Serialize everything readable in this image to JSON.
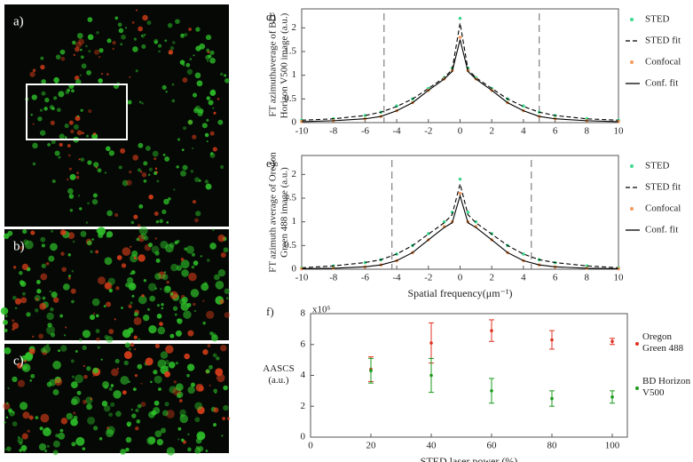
{
  "panels": [
    {
      "label": "a)"
    },
    {
      "label": "b)"
    },
    {
      "label": "c)"
    }
  ],
  "chart_data": [
    {
      "type": "line",
      "panel_label": "d)",
      "ylabel": [
        "FT azimuthaverage of BD",
        "Horizon V500 image (a.u.)"
      ],
      "x": [
        -10,
        -8,
        -6,
        -5,
        -4,
        -3,
        -2,
        -1,
        -0.5,
        0,
        0.5,
        1,
        2,
        3,
        4,
        5,
        6,
        8,
        10
      ],
      "xlim": [
        -10,
        10
      ],
      "xticks": [
        -10,
        -8,
        -6,
        -4,
        -2,
        0,
        2,
        4,
        6,
        8,
        10
      ],
      "ylim": [
        0,
        2.4
      ],
      "yticks": [
        0,
        0.5,
        1,
        1.5,
        2
      ],
      "vlines": [
        -4.8,
        5
      ],
      "series": [
        {
          "name": "STED",
          "color": "#3fd98f",
          "style": "points",
          "values": [
            0.05,
            0.08,
            0.15,
            0.22,
            0.35,
            0.5,
            0.72,
            0.95,
            1.15,
            2.2,
            1.15,
            0.95,
            0.72,
            0.5,
            0.35,
            0.22,
            0.15,
            0.08,
            0.05
          ]
        },
        {
          "name": "STED fit",
          "color": "#000000",
          "style": "dashed",
          "values": [
            0.05,
            0.08,
            0.15,
            0.22,
            0.34,
            0.5,
            0.72,
            0.95,
            1.12,
            2.1,
            1.12,
            0.95,
            0.72,
            0.5,
            0.34,
            0.22,
            0.15,
            0.08,
            0.05
          ]
        },
        {
          "name": "Confocal",
          "color": "#f39a5c",
          "style": "points",
          "values": [
            0.02,
            0.04,
            0.08,
            0.13,
            0.25,
            0.42,
            0.68,
            0.92,
            1.1,
            1.8,
            1.1,
            0.92,
            0.68,
            0.42,
            0.25,
            0.13,
            0.08,
            0.04,
            0.02
          ]
        },
        {
          "name": "Conf. fit",
          "color": "#000000",
          "style": "solid",
          "values": [
            0.02,
            0.04,
            0.08,
            0.13,
            0.25,
            0.42,
            0.68,
            0.92,
            1.08,
            1.75,
            1.08,
            0.92,
            0.68,
            0.42,
            0.25,
            0.13,
            0.08,
            0.04,
            0.02
          ]
        }
      ]
    },
    {
      "type": "line",
      "panel_label": "e)",
      "ylabel": [
        "FT azimuth average of Oregon",
        "Green 488 image (a.u.)"
      ],
      "xlabel": "Spatial frequency(μm⁻¹)",
      "x": [
        -10,
        -8,
        -6,
        -5,
        -4,
        -3,
        -2,
        -1,
        -0.5,
        0,
        0.5,
        1,
        2,
        3,
        4,
        5,
        6,
        8,
        10
      ],
      "xlim": [
        -10,
        10
      ],
      "xticks": [
        -10,
        -8,
        -6,
        -4,
        -2,
        0,
        2,
        4,
        6,
        8,
        10
      ],
      "ylim": [
        0,
        2.4
      ],
      "yticks": [
        0,
        0.5,
        1,
        1.5,
        2
      ],
      "vlines": [
        -4.3,
        4.5
      ],
      "series": [
        {
          "name": "STED",
          "color": "#3fd98f",
          "style": "points",
          "values": [
            0.03,
            0.07,
            0.14,
            0.2,
            0.32,
            0.5,
            0.75,
            1.0,
            1.2,
            1.9,
            1.2,
            1.0,
            0.75,
            0.5,
            0.32,
            0.2,
            0.14,
            0.07,
            0.03
          ]
        },
        {
          "name": "STED fit",
          "color": "#000000",
          "style": "dashed",
          "values": [
            0.03,
            0.07,
            0.14,
            0.2,
            0.32,
            0.5,
            0.74,
            0.98,
            1.15,
            1.8,
            1.15,
            0.98,
            0.74,
            0.5,
            0.32,
            0.2,
            0.14,
            0.07,
            0.03
          ]
        },
        {
          "name": "Confocal",
          "color": "#f39a5c",
          "style": "points",
          "values": [
            0.01,
            0.02,
            0.05,
            0.09,
            0.18,
            0.35,
            0.62,
            0.9,
            1.0,
            1.6,
            1.0,
            0.9,
            0.62,
            0.35,
            0.18,
            0.09,
            0.05,
            0.02,
            0.01
          ]
        },
        {
          "name": "Conf. fit",
          "color": "#000000",
          "style": "solid",
          "values": [
            0.01,
            0.02,
            0.05,
            0.09,
            0.18,
            0.35,
            0.62,
            0.88,
            0.98,
            1.55,
            0.98,
            0.88,
            0.62,
            0.35,
            0.18,
            0.09,
            0.05,
            0.02,
            0.01
          ]
        }
      ]
    },
    {
      "type": "scatter",
      "panel_label": "f)",
      "ylabel": "AASCS (a.u.)",
      "xlabel": "STED laser power (%)",
      "y_multiplier": "x10⁵",
      "x": [
        20,
        40,
        60,
        80,
        100
      ],
      "xlim": [
        0,
        105
      ],
      "xticks": [
        0,
        20,
        40,
        60,
        80,
        100
      ],
      "ylim": [
        0,
        8
      ],
      "yticks": [
        0,
        2,
        4,
        6,
        8
      ],
      "series": [
        {
          "name": "Oregon Green 488",
          "color": "#e03020",
          "values": [
            4.4,
            6.1,
            6.9,
            6.3,
            6.2
          ],
          "errors": [
            0.8,
            1.3,
            0.7,
            0.6,
            0.2
          ]
        },
        {
          "name": "BD Horizon V500",
          "color": "#1a9a1a",
          "values": [
            4.3,
            4.0,
            3.0,
            2.5,
            2.6
          ],
          "errors": [
            0.8,
            1.1,
            0.8,
            0.5,
            0.4
          ]
        }
      ]
    }
  ]
}
